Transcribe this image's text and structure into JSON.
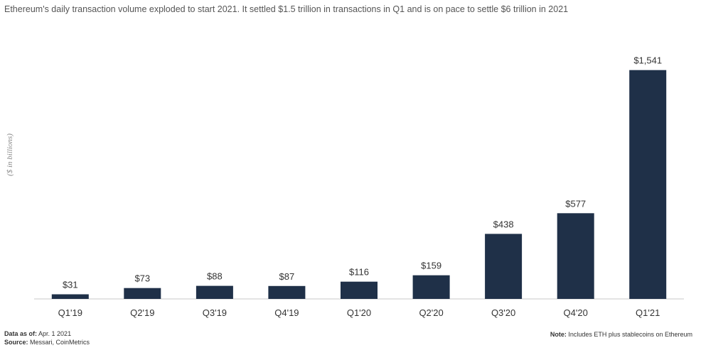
{
  "chart_data": {
    "type": "bar",
    "title": "",
    "subtitle": "Ethereum's daily transaction volume exploded to start 2021.  It settled $1.5 trillion in transactions in Q1 and is on pace to settle $6 trillion in 2021",
    "xlabel": "",
    "ylabel": "($ in billions)",
    "categories": [
      "Q1'19",
      "Q2'19",
      "Q3'19",
      "Q4'19",
      "Q1'20",
      "Q2'20",
      "Q3'20",
      "Q4'20",
      "Q1'21"
    ],
    "values": [
      31,
      73,
      88,
      87,
      116,
      159,
      438,
      577,
      1541
    ],
    "value_labels": [
      "$31",
      "$73",
      "$88",
      "$87",
      "$116",
      "$159",
      "$438",
      "$577",
      "$1,541"
    ],
    "ylim": [
      0,
      1640
    ],
    "grid": false,
    "bar_color": "#1f3048"
  },
  "footer": {
    "data_as_of_label": "Data as of:",
    "data_as_of_value": "Apr. 1 2021",
    "source_label": "Source:",
    "source_value": "Messari, CoinMetrics",
    "note_label": "Note:",
    "note_value": "Includes  ETH plus stablecoins  on Ethereum"
  }
}
